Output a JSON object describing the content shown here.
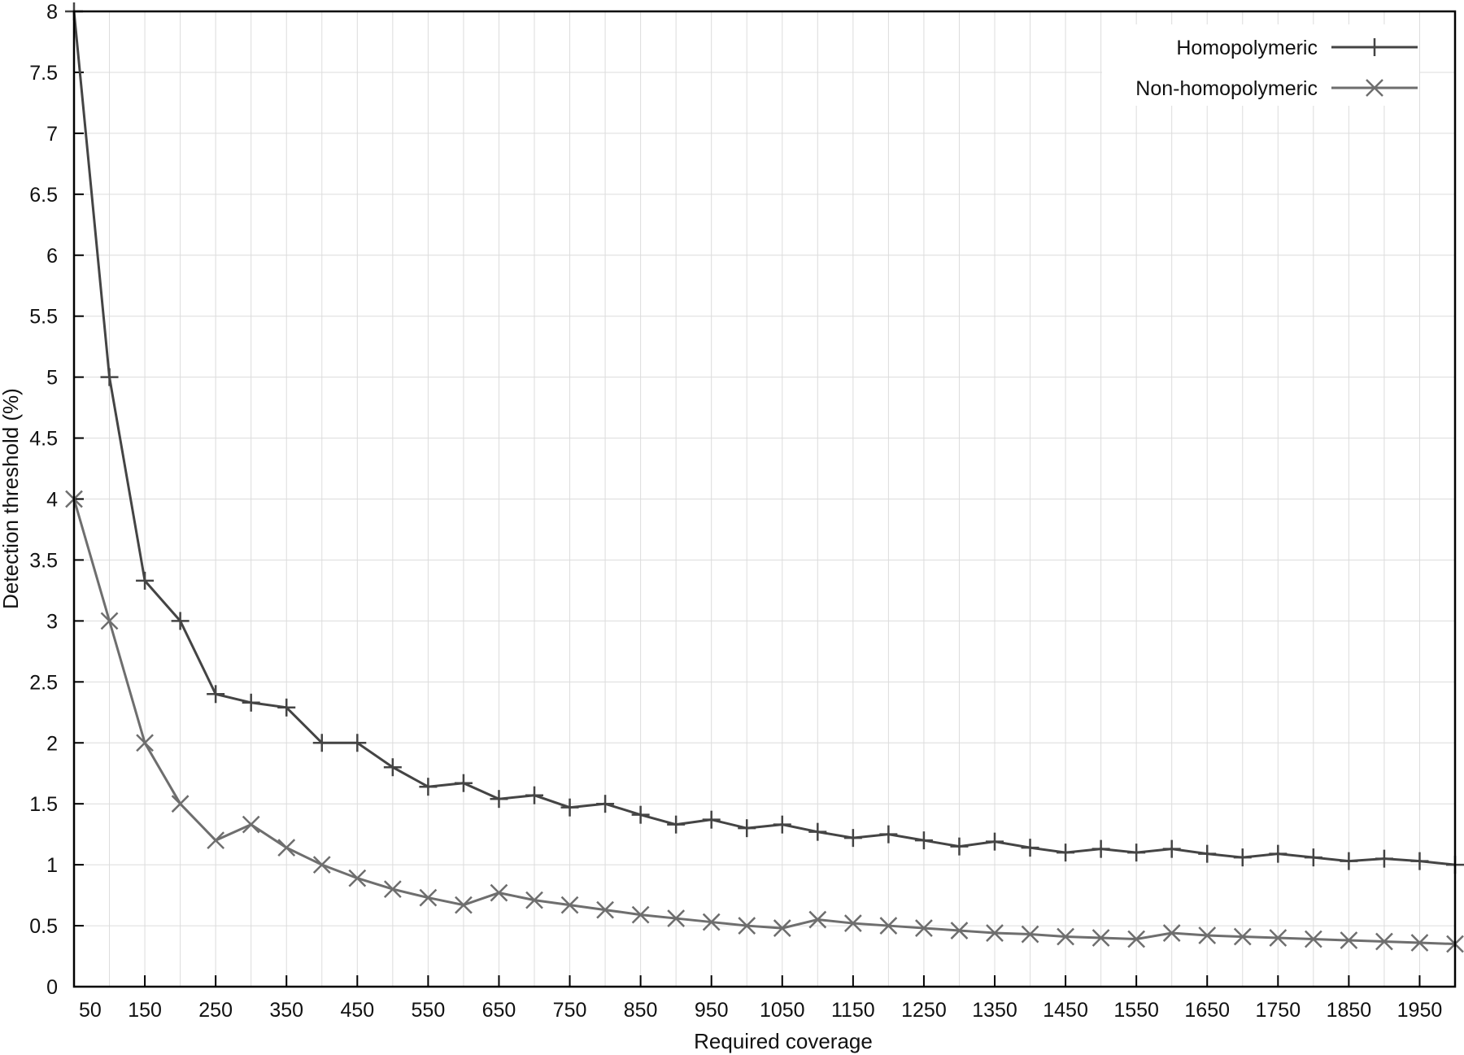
{
  "chart_data": {
    "type": "line",
    "title": "",
    "xlabel": "Required coverage",
    "ylabel": "Detection threshold (%)",
    "xlim": [
      50,
      2000
    ],
    "ylim": [
      0,
      8
    ],
    "grid": true,
    "legend_position": "top-right",
    "x_ticks": [
      50,
      150,
      250,
      350,
      450,
      550,
      650,
      750,
      850,
      950,
      1050,
      1150,
      1250,
      1350,
      1450,
      1550,
      1650,
      1750,
      1850,
      1950
    ],
    "y_ticks": [
      0,
      0.5,
      1,
      1.5,
      2,
      2.5,
      3,
      3.5,
      4,
      4.5,
      5,
      5.5,
      6,
      6.5,
      7,
      7.5,
      8
    ],
    "x": [
      50,
      100,
      150,
      200,
      250,
      300,
      350,
      400,
      450,
      500,
      550,
      600,
      650,
      700,
      750,
      800,
      850,
      900,
      950,
      1000,
      1050,
      1100,
      1150,
      1200,
      1250,
      1300,
      1350,
      1400,
      1450,
      1500,
      1550,
      1600,
      1650,
      1700,
      1750,
      1800,
      1850,
      1900,
      1950,
      2000
    ],
    "series": [
      {
        "name": "Homopolymeric",
        "marker": "plus",
        "color": "#444444",
        "values": [
          8,
          5,
          3.33,
          3,
          2.4,
          2.33,
          2.29,
          2,
          2,
          1.8,
          1.64,
          1.67,
          1.54,
          1.57,
          1.47,
          1.5,
          1.41,
          1.33,
          1.37,
          1.3,
          1.33,
          1.27,
          1.22,
          1.25,
          1.2,
          1.15,
          1.19,
          1.14,
          1.1,
          1.13,
          1.1,
          1.13,
          1.09,
          1.06,
          1.09,
          1.06,
          1.03,
          1.05,
          1.03,
          1.0
        ]
      },
      {
        "name": "Non-homopolymeric",
        "marker": "cross",
        "color": "#6e6e6e",
        "values": [
          4,
          3,
          2,
          1.5,
          1.2,
          1.33,
          1.14,
          1,
          0.89,
          0.8,
          0.73,
          0.67,
          0.77,
          0.71,
          0.67,
          0.63,
          0.59,
          0.56,
          0.53,
          0.5,
          0.48,
          0.55,
          0.52,
          0.5,
          0.48,
          0.46,
          0.44,
          0.43,
          0.41,
          0.4,
          0.39,
          0.44,
          0.42,
          0.41,
          0.4,
          0.39,
          0.38,
          0.37,
          0.36,
          0.35
        ]
      }
    ]
  }
}
